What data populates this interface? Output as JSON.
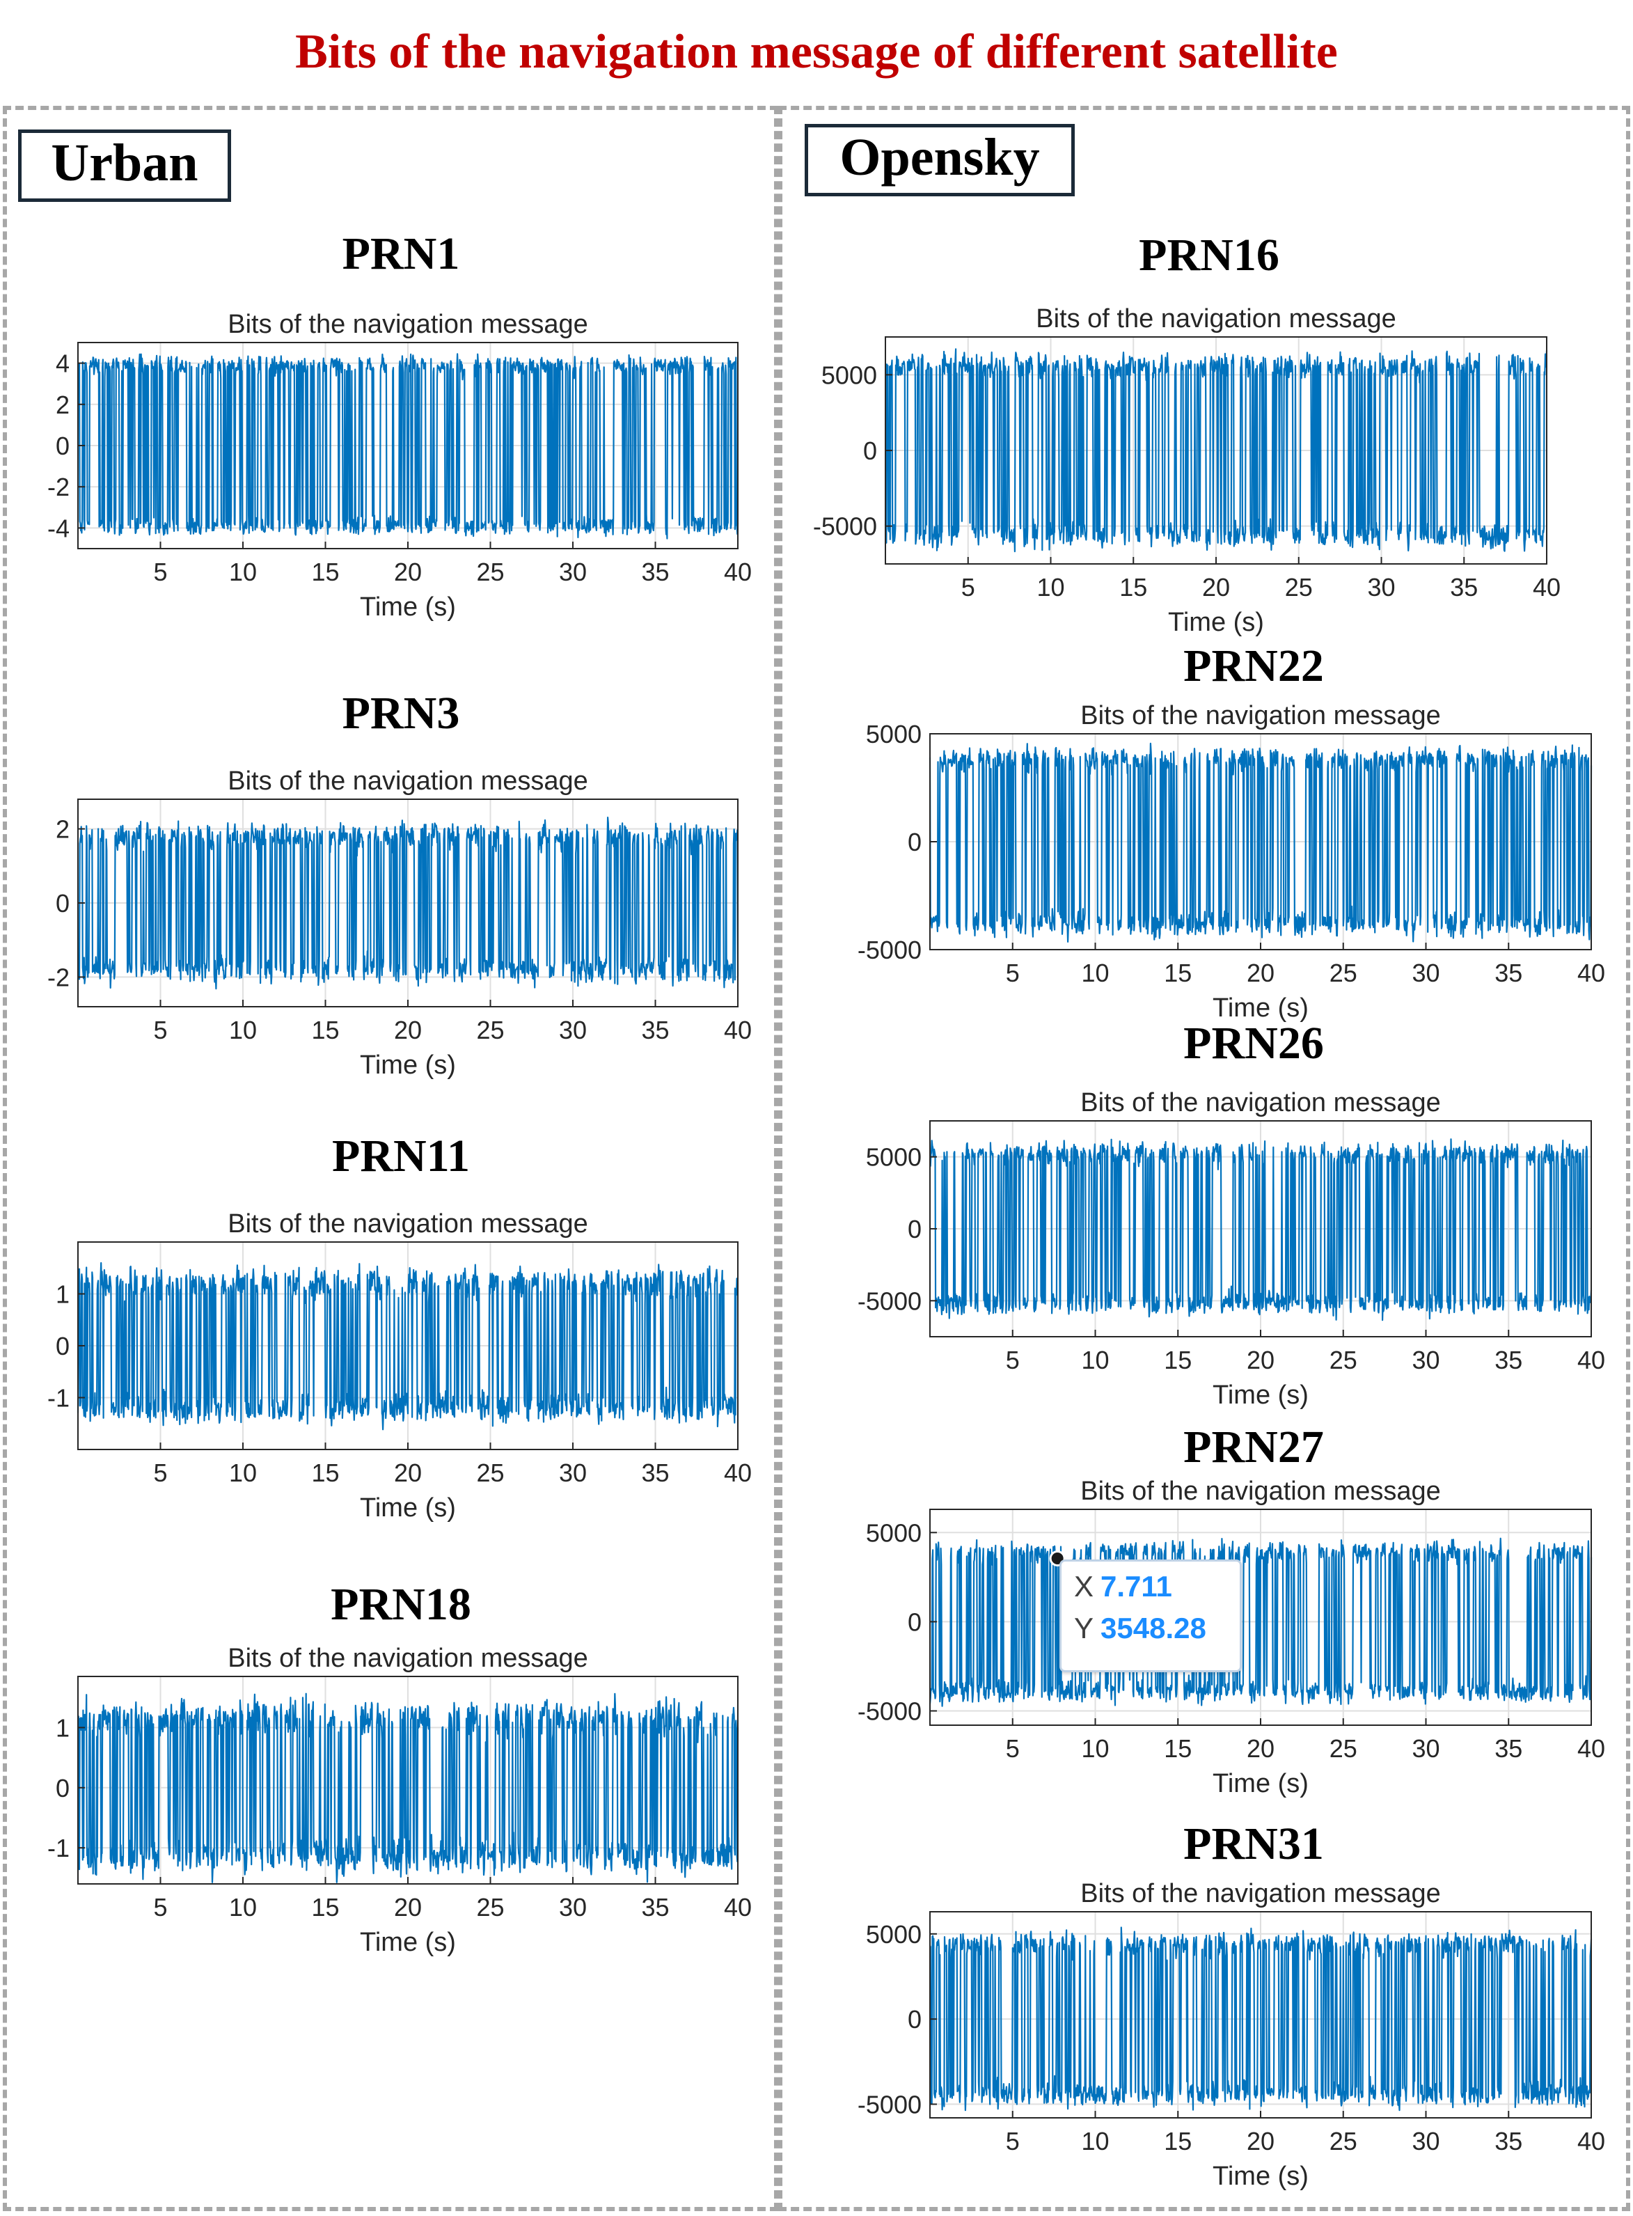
{
  "title": "Bits of the navigation message of different satellite",
  "title_color": "#c00000",
  "panels": {
    "urban": {
      "label": "Urban"
    },
    "opensky": {
      "label": "Opensky"
    }
  },
  "datatip": {
    "x_key": "X",
    "x_value": "7.711",
    "y_key": "Y",
    "y_value": "3548.28",
    "accent": "#1a8cff"
  },
  "chart_data": [
    {
      "id": "prn1",
      "panel": "Urban",
      "heading": "PRN1",
      "type": "line",
      "title": "Bits of the navigation message",
      "xlabel": "Time (s)",
      "ylabel": "",
      "xlim": [
        0,
        40
      ],
      "ylim": [
        -5,
        5
      ],
      "xticks": [
        5,
        10,
        15,
        20,
        25,
        30,
        35,
        40
      ],
      "yticks": [
        -4,
        -2,
        0,
        2,
        4
      ],
      "ytick_labels": [
        "-4",
        "-2",
        "0",
        "2",
        "4"
      ],
      "amplitude": 3.9,
      "noise": 0.45,
      "color": "#0072bd",
      "grid": true
    },
    {
      "id": "prn3",
      "panel": "Urban",
      "heading": "PRN3",
      "type": "line",
      "title": "Bits of the navigation message",
      "xlabel": "Time (s)",
      "ylabel": "",
      "xlim": [
        0,
        40
      ],
      "ylim": [
        -2.8,
        2.8
      ],
      "xticks": [
        5,
        10,
        15,
        20,
        25,
        30,
        35,
        40
      ],
      "yticks": [
        -2,
        0,
        2
      ],
      "ytick_labels": [
        "-2",
        "0",
        "2"
      ],
      "amplitude": 1.8,
      "noise": 0.35,
      "color": "#0072bd",
      "grid": true
    },
    {
      "id": "prn11",
      "panel": "Urban",
      "heading": "PRN11",
      "type": "line",
      "title": "Bits of the navigation message",
      "xlabel": "Time (s)",
      "ylabel": "",
      "xlim": [
        0,
        40
      ],
      "ylim": [
        -2,
        2
      ],
      "xticks": [
        5,
        10,
        15,
        20,
        25,
        30,
        35,
        40
      ],
      "yticks": [
        -1,
        0,
        1
      ],
      "ytick_labels": [
        "-1",
        "0",
        "1"
      ],
      "amplitude": 1.2,
      "noise": 0.28,
      "color": "#0072bd",
      "grid": true
    },
    {
      "id": "prn18",
      "panel": "Urban",
      "heading": "PRN18",
      "type": "line",
      "title": "Bits of the navigation message",
      "xlabel": "Time (s)",
      "ylabel": "",
      "xlim": [
        0,
        40
      ],
      "ylim": [
        -1.6,
        1.85
      ],
      "xticks": [
        5,
        10,
        15,
        20,
        25,
        30,
        35,
        40
      ],
      "yticks": [
        -1,
        0,
        1
      ],
      "ytick_labels": [
        "-1",
        "0",
        "1"
      ],
      "amplitude": 1.15,
      "noise": 0.28,
      "color": "#0072bd",
      "grid": true
    },
    {
      "id": "prn16",
      "panel": "Opensky",
      "heading": "PRN16",
      "type": "line",
      "title": "Bits of the navigation message",
      "xlabel": "Time (s)",
      "ylabel": "",
      "xlim": [
        0,
        40
      ],
      "ylim": [
        -7500,
        7500
      ],
      "xticks": [
        5,
        10,
        15,
        20,
        25,
        30,
        35,
        40
      ],
      "yticks": [
        -5000,
        0,
        5000
      ],
      "ytick_labels": [
        "-5000",
        "0",
        "5000"
      ],
      "amplitude": 5600,
      "noise": 800,
      "color": "#0072bd",
      "grid": true
    },
    {
      "id": "prn22",
      "panel": "Opensky",
      "heading": "PRN22",
      "type": "line",
      "title": "Bits of the navigation message",
      "xlabel": "Time (s)",
      "ylabel": "",
      "xlim": [
        0,
        40
      ],
      "ylim": [
        -5000,
        5000
      ],
      "xticks": [
        5,
        10,
        15,
        20,
        25,
        30,
        35,
        40
      ],
      "yticks": [
        -5000,
        0,
        5000
      ],
      "ytick_labels": [
        "-5000",
        "0",
        "5000"
      ],
      "amplitude": 3800,
      "noise": 550,
      "color": "#0072bd",
      "grid": true
    },
    {
      "id": "prn26",
      "panel": "Opensky",
      "heading": "PRN26",
      "type": "line",
      "title": "Bits of the navigation message",
      "xlabel": "Time (s)",
      "ylabel": "",
      "xlim": [
        0,
        40
      ],
      "ylim": [
        -7500,
        7500
      ],
      "xticks": [
        5,
        10,
        15,
        20,
        25,
        30,
        35,
        40
      ],
      "yticks": [
        -5000,
        0,
        5000
      ],
      "ytick_labels": [
        "-5000",
        "0",
        "5000"
      ],
      "amplitude": 5200,
      "noise": 750,
      "color": "#0072bd",
      "grid": true
    },
    {
      "id": "prn27",
      "panel": "Opensky",
      "heading": "PRN27",
      "type": "line",
      "title": "Bits of the navigation message",
      "xlabel": "Time (s)",
      "ylabel": "",
      "xlim": [
        0,
        40
      ],
      "ylim": [
        -5800,
        6300
      ],
      "xticks": [
        5,
        10,
        15,
        20,
        25,
        30,
        35,
        40
      ],
      "yticks": [
        -5000,
        0,
        5000
      ],
      "ytick_labels": [
        "-5000",
        "0",
        "5000"
      ],
      "amplitude": 3900,
      "noise": 600,
      "color": "#0072bd",
      "grid": true,
      "datatip_point": {
        "x": 7.711,
        "y": 3548.28
      }
    },
    {
      "id": "prn31",
      "panel": "Opensky",
      "heading": "PRN31",
      "type": "line",
      "title": "Bits of the navigation message",
      "xlabel": "Time (s)",
      "ylabel": "",
      "xlim": [
        0,
        40
      ],
      "ylim": [
        -5800,
        6300
      ],
      "xticks": [
        5,
        10,
        15,
        20,
        25,
        30,
        35,
        40
      ],
      "yticks": [
        -5000,
        0,
        5000
      ],
      "ytick_labels": [
        "-5000",
        "0",
        "5000"
      ],
      "amplitude": 4400,
      "noise": 700,
      "color": "#0072bd",
      "grid": true
    }
  ]
}
